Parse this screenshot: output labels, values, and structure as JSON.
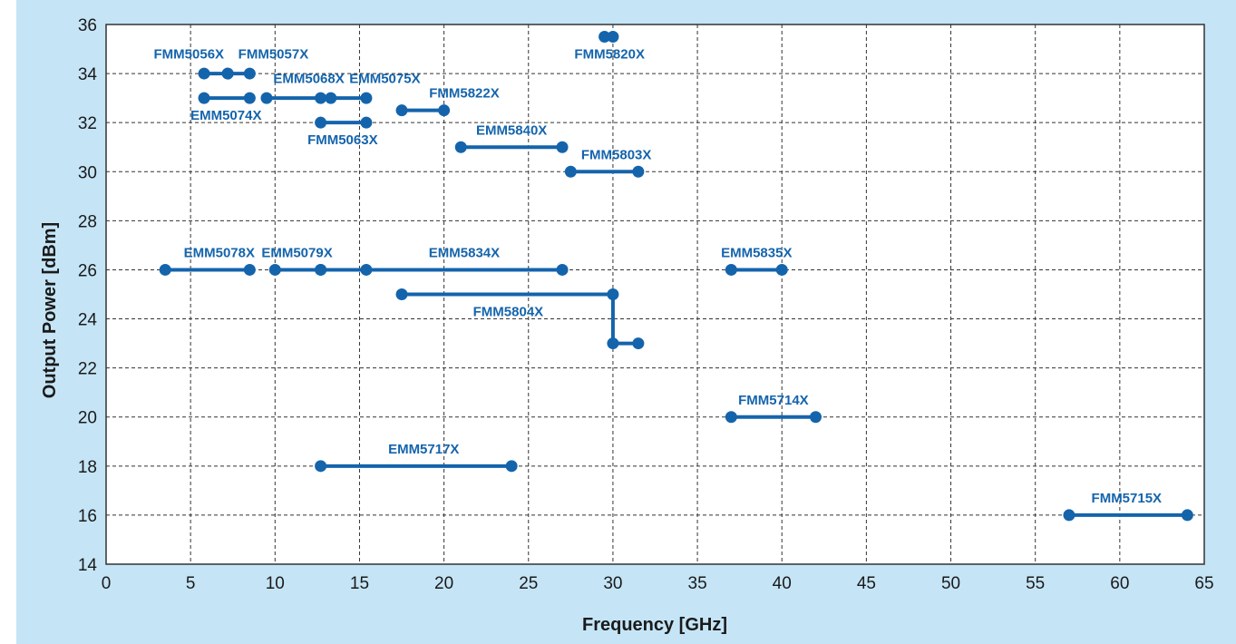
{
  "chart_data": {
    "type": "line",
    "title": "",
    "xlabel": "Frequency [GHz]",
    "ylabel": "Output Power [dBm]",
    "xlim": [
      0,
      65
    ],
    "ylim": [
      14,
      36
    ],
    "xticks": [
      0,
      5,
      10,
      15,
      20,
      25,
      30,
      35,
      40,
      45,
      50,
      55,
      60,
      65
    ],
    "yticks": [
      14,
      16,
      18,
      20,
      22,
      24,
      26,
      28,
      30,
      32,
      34,
      36
    ],
    "grid": true,
    "legend": "none",
    "colors": {
      "series": "#1464ac",
      "background": "#c5e5f7",
      "plot_area": "#ffffff",
      "grid": "#333333",
      "text": "#1a1a1a"
    },
    "series": [
      {
        "name": "FMM5056X",
        "x": [
          5.8,
          7.2
        ],
        "y": [
          34,
          34
        ]
      },
      {
        "name": "FMM5057X",
        "x": [
          7.2,
          8.5
        ],
        "y": [
          34,
          34
        ]
      },
      {
        "name": "EMM5074X",
        "x": [
          5.8,
          8.5
        ],
        "y": [
          33,
          33
        ]
      },
      {
        "name": "EMM5068X",
        "x": [
          9.5,
          13.3
        ],
        "y": [
          33,
          33
        ]
      },
      {
        "name": "EMM5075X",
        "x": [
          12.7,
          15.4
        ],
        "y": [
          33,
          33
        ]
      },
      {
        "name": "FMM5063X",
        "x": [
          12.7,
          15.4
        ],
        "y": [
          32,
          32
        ]
      },
      {
        "name": "FMM5822X",
        "x": [
          17.5,
          20
        ],
        "y": [
          32.5,
          32.5
        ]
      },
      {
        "name": "FMM5820X",
        "x": [
          29.5,
          30
        ],
        "y": [
          35.5,
          35.5
        ]
      },
      {
        "name": "EMM5840X",
        "x": [
          21,
          27
        ],
        "y": [
          31,
          31
        ]
      },
      {
        "name": "FMM5803X",
        "x": [
          27.5,
          31.5
        ],
        "y": [
          30,
          30
        ]
      },
      {
        "name": "EMM5078X",
        "x": [
          3.5,
          8.5
        ],
        "y": [
          26,
          26
        ]
      },
      {
        "name": "EMM5079X",
        "x": [
          10,
          12.7
        ],
        "y": [
          26,
          26
        ]
      },
      {
        "name": "EMM5834X",
        "x": [
          12.7,
          15.4,
          27
        ],
        "y": [
          26,
          26,
          26
        ]
      },
      {
        "name": "EMM5835X",
        "x": [
          37,
          40
        ],
        "y": [
          26,
          26
        ]
      },
      {
        "name": "FMM5804X",
        "x": [
          17.5,
          30,
          30,
          31.5
        ],
        "y": [
          25,
          25,
          23,
          23
        ]
      },
      {
        "name": "FMM5714X",
        "x": [
          37,
          42
        ],
        "y": [
          20,
          20
        ]
      },
      {
        "name": "EMM5717X",
        "x": [
          12.7,
          24
        ],
        "y": [
          18,
          18
        ]
      },
      {
        "name": "FMM5715X",
        "x": [
          57,
          64
        ],
        "y": [
          16,
          16
        ]
      }
    ],
    "annotations": [
      {
        "text": "FMM5056X",
        "x": 4.9,
        "y": 34.8
      },
      {
        "text": "FMM5057X",
        "x": 9.9,
        "y": 34.8
      },
      {
        "text": "EMM5074X",
        "x": 7.1,
        "y": 32.3
      },
      {
        "text": "EMM5068X",
        "x": 12.0,
        "y": 33.8
      },
      {
        "text": "EMM5075X",
        "x": 16.5,
        "y": 33.8
      },
      {
        "text": "FMM5063X",
        "x": 14.0,
        "y": 31.3
      },
      {
        "text": "FMM5822X",
        "x": 21.2,
        "y": 33.2
      },
      {
        "text": "FMM5820X",
        "x": 29.8,
        "y": 34.8
      },
      {
        "text": "EMM5840X",
        "x": 24.0,
        "y": 31.7
      },
      {
        "text": "FMM5803X",
        "x": 30.2,
        "y": 30.7
      },
      {
        "text": "EMM5078X",
        "x": 6.7,
        "y": 26.7
      },
      {
        "text": "EMM5079X",
        "x": 11.3,
        "y": 26.7
      },
      {
        "text": "EMM5834X",
        "x": 21.2,
        "y": 26.7
      },
      {
        "text": "EMM5835X",
        "x": 38.5,
        "y": 26.7
      },
      {
        "text": "FMM5804X",
        "x": 23.8,
        "y": 24.3
      },
      {
        "text": "FMM5714X",
        "x": 39.5,
        "y": 20.7
      },
      {
        "text": "EMM5717X",
        "x": 18.8,
        "y": 18.7
      },
      {
        "text": "FMM5715X",
        "x": 60.4,
        "y": 16.7
      }
    ]
  }
}
